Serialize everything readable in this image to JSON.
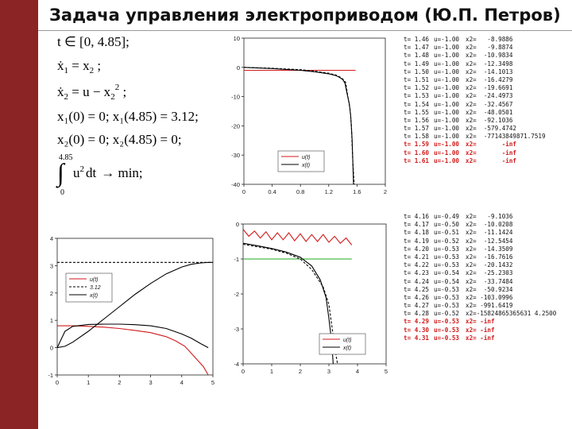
{
  "title": "Задача управления электроприводом (Ю.П. Петров)",
  "colors": {
    "sidebar": "#8b2424",
    "red": "#d11a1a",
    "green": "#1fa81f",
    "black": "#000000",
    "highlight": "#d11a1a"
  },
  "formulas": {
    "line1": "t ∈ [0, 4.85];",
    "line2a": "ẋ",
    "line2b": "1",
    "line2c": " = x",
    "line2d": "2",
    "line2e": " ;",
    "line3a": "ẋ",
    "line3b": "2",
    "line3c": " = u − x",
    "line3d": "2",
    "line3e": "2",
    "line3f": " ;",
    "line4": "x₁(0) = 0; x₁(4.85) = 3.12;",
    "line5": "x₂(0) = 0; x₂(4.85) = 0;",
    "int_upper": "4.85",
    "int_lower": "0",
    "integral": "∫",
    "integrand": "u",
    "integrand_sup": "2",
    "integrand_dt": "dt",
    "arrow": "→ min;"
  },
  "log1": [
    {
      "t": "t= 1.46",
      "u": "u=-1.00",
      "x2": "x2=   -8.9886",
      "hl": false
    },
    {
      "t": "t= 1.47",
      "u": "u=-1.00",
      "x2": "x2=   -9.8874",
      "hl": false
    },
    {
      "t": "t= 1.48",
      "u": "u=-1.00",
      "x2": "x2=  -10.9834",
      "hl": false
    },
    {
      "t": "t= 1.49",
      "u": "u=-1.00",
      "x2": "x2=  -12.3498",
      "hl": false
    },
    {
      "t": "t= 1.50",
      "u": "u=-1.00",
      "x2": "x2=  -14.1013",
      "hl": false
    },
    {
      "t": "t= 1.51",
      "u": "u=-1.00",
      "x2": "x2=  -16.4279",
      "hl": false
    },
    {
      "t": "t= 1.52",
      "u": "u=-1.00",
      "x2": "x2=  -19.6691",
      "hl": false
    },
    {
      "t": "t= 1.53",
      "u": "u=-1.00",
      "x2": "x2=  -24.4973",
      "hl": false
    },
    {
      "t": "t= 1.54",
      "u": "u=-1.00",
      "x2": "x2=  -32.4567",
      "hl": false
    },
    {
      "t": "t= 1.55",
      "u": "u=-1.00",
      "x2": "x2=  -48.0501",
      "hl": false
    },
    {
      "t": "t= 1.56",
      "u": "u=-1.00",
      "x2": "x2=  -92.1036",
      "hl": false
    },
    {
      "t": "t= 1.57",
      "u": "u=-1.00",
      "x2": "x2=  -579.4742",
      "hl": false
    },
    {
      "t": "t= 1.58",
      "u": "u=-1.00",
      "x2": "x2=  -77143849871.7519",
      "hl": false
    },
    {
      "t": "t= 1.59",
      "u": "u=-1.00",
      "x2": "x2=       -inf",
      "hl": true
    },
    {
      "t": "t= 1.60",
      "u": "u=-1.00",
      "x2": "x2=       -inf",
      "hl": true
    },
    {
      "t": "t= 1.61",
      "u": "u=-1.00",
      "x2": "x2=       -inf",
      "hl": true
    }
  ],
  "log2": [
    {
      "t": "t= 4.16",
      "u": "u=-0.49",
      "x2": "x2=   -9.1036",
      "hl": false
    },
    {
      "t": "t= 4.17",
      "u": "u=-0.50",
      "x2": "x2=  -10.0208",
      "hl": false
    },
    {
      "t": "t= 4.18",
      "u": "u=-0.51",
      "x2": "x2=  -11.1424",
      "hl": false
    },
    {
      "t": "t= 4.19",
      "u": "u=-0.52",
      "x2": "x2=  -12.5454",
      "hl": false
    },
    {
      "t": "t= 4.20",
      "u": "u=-0.53",
      "x2": "x2=  -14.3509",
      "hl": false
    },
    {
      "t": "t= 4.21",
      "u": "u=-0.53",
      "x2": "x2=  -16.7616",
      "hl": false
    },
    {
      "t": "t= 4.22",
      "u": "u=-0.53",
      "x2": "x2=  -20.1432",
      "hl": false
    },
    {
      "t": "t= 4.23",
      "u": "u=-0.54",
      "x2": "x2=  -25.2303",
      "hl": false
    },
    {
      "t": "t= 4.24",
      "u": "u=-0.54",
      "x2": "x2=  -33.7484",
      "hl": false
    },
    {
      "t": "t= 4.25",
      "u": "u=-0.53",
      "x2": "x2=  -50.9234",
      "hl": false
    },
    {
      "t": "t= 4.26",
      "u": "u=-0.53",
      "x2": "x2= -103.0996",
      "hl": false
    },
    {
      "t": "t= 4.27",
      "u": "u=-0.53",
      "x2": "x2= -991.6419",
      "hl": false
    },
    {
      "t": "t= 4.28",
      "u": "u=-0.52",
      "x2": "x2=-15824865365631 4.2500",
      "hl": false
    },
    {
      "t": "t= 4.29",
      "u": "u=-0.53",
      "x2": "x2= -inf",
      "hl": true
    },
    {
      "t": "t= 4.30",
      "u": "u=-0.53",
      "x2": "x2= -inf",
      "hl": true
    },
    {
      "t": "t= 4.31",
      "u": "u=-0.53",
      "x2": "x2= -inf",
      "hl": true
    }
  ],
  "chart_data": [
    {
      "id": "plot1",
      "type": "line",
      "xlim": [
        0,
        2
      ],
      "ylim": [
        -40,
        10
      ],
      "xticks": [
        "0",
        "0.4",
        "0.8",
        "1.2",
        "1.6",
        "2"
      ],
      "yticks": [
        "10",
        "0",
        "-10",
        "-20",
        "-30",
        "-40"
      ],
      "legend": {
        "items": [
          "u(t)",
          "x(t)"
        ],
        "position": "lower-right"
      },
      "series": [
        {
          "name": "u(t)",
          "color": "#d11a1a",
          "dash": "solid",
          "x": [
            0,
            1.2,
            1.58
          ],
          "y": [
            -1,
            -1,
            -1
          ]
        },
        {
          "name": "x(t)",
          "color": "#000000",
          "dash": "solid",
          "x": [
            0,
            0.4,
            0.8,
            1.0,
            1.2,
            1.3,
            1.35,
            1.4,
            1.43,
            1.46,
            1.49,
            1.51,
            1.53,
            1.55
          ],
          "y": [
            0,
            -0.4,
            -1.0,
            -1.5,
            -2.2,
            -2.8,
            -3.4,
            -4.2,
            -5.5,
            -8.99,
            -12.35,
            -16.43,
            -24.5,
            -40
          ]
        },
        {
          "name": "",
          "color": "#000000",
          "dash": "dashed",
          "x": [
            0,
            0.4,
            0.8,
            1.0,
            1.2,
            1.3,
            1.35,
            1.4,
            1.44,
            1.47,
            1.5,
            1.52,
            1.54,
            1.56
          ],
          "y": [
            0,
            -0.3,
            -0.8,
            -1.3,
            -2.0,
            -2.6,
            -3.2,
            -4.0,
            -5.2,
            -9.89,
            -14.1,
            -19.67,
            -32.46,
            -40
          ]
        }
      ]
    },
    {
      "id": "plot2",
      "type": "line",
      "xlim": [
        0,
        5
      ],
      "ylim": [
        -1,
        4
      ],
      "xticks": [
        "0",
        "1",
        "2",
        "3",
        "4",
        "5"
      ],
      "yticks": [
        "4",
        "3",
        "2",
        "1",
        "0",
        "-1"
      ],
      "legend": {
        "items": [
          "u(t)",
          "3.12",
          "x(t)"
        ],
        "position": "upper-left"
      },
      "series": [
        {
          "name": "u(t)",
          "color": "#d11a1a",
          "dash": "solid",
          "x": [
            0,
            0.5,
            1.0,
            1.5,
            2.0,
            2.5,
            3.0,
            3.5,
            3.8,
            4.1,
            4.3,
            4.5,
            4.7,
            4.85
          ],
          "y": [
            0.8,
            0.8,
            0.78,
            0.75,
            0.7,
            0.63,
            0.55,
            0.4,
            0.25,
            0.05,
            -0.2,
            -0.45,
            -0.7,
            -1.0
          ]
        },
        {
          "name": "3.12",
          "color": "#000000",
          "dash": "dashed",
          "x": [
            0,
            5
          ],
          "y": [
            3.12,
            3.12
          ]
        },
        {
          "name": "x(t)",
          "color": "#000000",
          "dash": "solid",
          "x": [
            0,
            0.25,
            0.5,
            1.0,
            1.5,
            2.0,
            2.5,
            3.0,
            3.5,
            4.0,
            4.3,
            4.6,
            4.85,
            5.0
          ],
          "y": [
            0,
            0.05,
            0.2,
            0.6,
            1.05,
            1.5,
            1.95,
            2.35,
            2.7,
            2.95,
            3.05,
            3.1,
            3.12,
            3.12
          ]
        },
        {
          "name": "x2(t)",
          "color": "#000000",
          "dash": "solid",
          "x": [
            0,
            0.25,
            0.5,
            1.0,
            1.5,
            2.0,
            2.5,
            3.0,
            3.5,
            4.0,
            4.3,
            4.6,
            4.85
          ],
          "y": [
            0,
            0.6,
            0.78,
            0.85,
            0.86,
            0.86,
            0.84,
            0.8,
            0.7,
            0.5,
            0.35,
            0.15,
            0.0
          ]
        }
      ]
    },
    {
      "id": "plot3",
      "type": "line",
      "xlim": [
        0,
        5
      ],
      "ylim": [
        -4,
        0
      ],
      "xticks": [
        "0",
        "1",
        "2",
        "3",
        "4",
        "5"
      ],
      "yticks": [
        "0",
        "-1",
        "-2",
        "-3",
        "-4"
      ],
      "legend": {
        "items": [
          "u(t)",
          "x(t)"
        ],
        "position": "lower-right"
      },
      "series": [
        {
          "name": "u(t)",
          "color": "#d11a1a",
          "dash": "solid",
          "x": [
            0,
            0.2,
            0.4,
            0.6,
            0.8,
            1.0,
            1.2,
            1.4,
            1.6,
            1.8,
            2.0,
            2.2,
            2.4,
            2.6,
            2.8,
            3.0,
            3.2,
            3.4,
            3.6,
            3.8
          ],
          "y": [
            -0.15,
            -0.35,
            -0.2,
            -0.4,
            -0.22,
            -0.45,
            -0.25,
            -0.45,
            -0.25,
            -0.48,
            -0.28,
            -0.5,
            -0.3,
            -0.5,
            -0.3,
            -0.52,
            -0.35,
            -0.55,
            -0.4,
            -0.6
          ]
        },
        {
          "name": "",
          "color": "#1fa81f",
          "dash": "solid",
          "x": [
            0,
            3.8
          ],
          "y": [
            -1,
            -1
          ]
        },
        {
          "name": "x(t)",
          "color": "#000000",
          "dash": "solid",
          "x": [
            0,
            0.5,
            1.0,
            1.5,
            2.0,
            2.4,
            2.7,
            2.9,
            3.0,
            3.1,
            3.15
          ],
          "y": [
            -0.55,
            -0.62,
            -0.7,
            -0.8,
            -0.95,
            -1.2,
            -1.6,
            -2.1,
            -2.7,
            -3.4,
            -4.0
          ]
        },
        {
          "name": "",
          "color": "#000000",
          "dash": "dashed",
          "x": [
            0,
            0.5,
            1.0,
            1.5,
            2.0,
            2.4,
            2.8,
            3.0,
            3.1,
            3.2,
            3.3
          ],
          "y": [
            -0.58,
            -0.65,
            -0.72,
            -0.83,
            -1.0,
            -1.3,
            -1.8,
            -2.3,
            -2.9,
            -3.5,
            -4.0
          ]
        }
      ]
    }
  ]
}
